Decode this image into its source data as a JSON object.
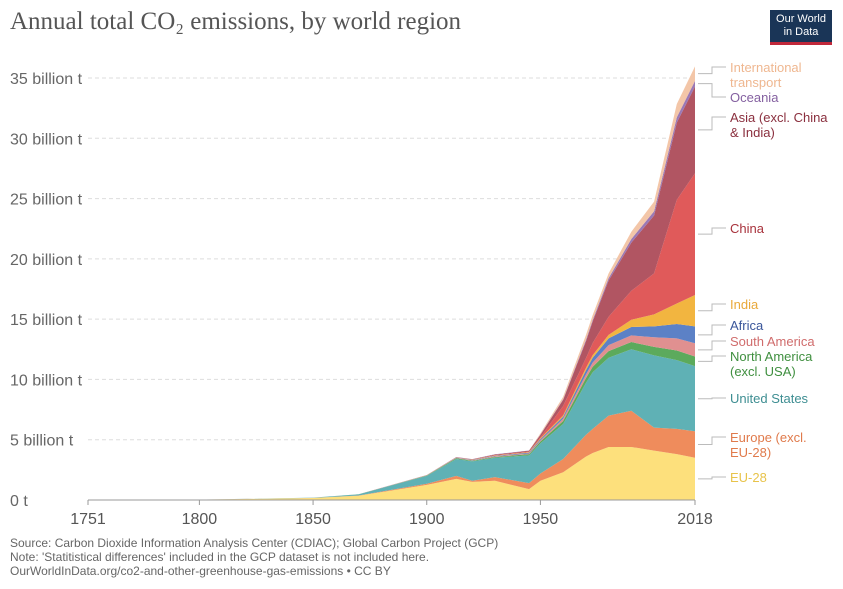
{
  "title": "Annual total CO₂ emissions, by world region",
  "logo": {
    "line1": "Our World",
    "line2": "in Data"
  },
  "footer": {
    "source": "Source: Carbon Dioxide Information Analysis Center (CDIAC); Global Carbon Project (GCP)",
    "note": "Note: 'Statitistical differences' included in the GCP dataset is not included here.",
    "url": "OurWorldInData.org/co2-and-other-greenhouse-gas-emissions • CC BY"
  },
  "chart_data": {
    "type": "area",
    "stacked": true,
    "title": "Annual total CO₂ emissions, by world region",
    "xlim": [
      1751,
      2018
    ],
    "ylim": [
      0,
      35
    ],
    "x_ticks": [
      "1751",
      "1800",
      "1850",
      "1900",
      "1950",
      "2018"
    ],
    "y_ticks": [
      0,
      5,
      10,
      15,
      20,
      25,
      30,
      35
    ],
    "y_tick_labels": [
      "0 t",
      "5 billion t",
      "10 billion t",
      "15 billion t",
      "20 billion t",
      "25 billion t",
      "30 billion t",
      "35 billion t"
    ],
    "grid": "horizontal dashed",
    "legend": "right, inline labels",
    "unit": "billion t",
    "x": [
      1751,
      1800,
      1850,
      1870,
      1900,
      1913,
      1920,
      1930,
      1945,
      1950,
      1960,
      1970,
      1973,
      1980,
      1990,
      2000,
      2010,
      2018
    ],
    "series": [
      {
        "name": "EU-28",
        "color": "#fde07c",
        "label_color": "#e8c34a",
        "values": [
          0.009,
          0.027,
          0.17,
          0.35,
          1.25,
          1.75,
          1.5,
          1.6,
          0.9,
          1.6,
          2.3,
          3.6,
          3.9,
          4.4,
          4.4,
          4.1,
          3.8,
          3.5
        ]
      },
      {
        "name": "Europe (excl. EU-28)",
        "color": "#ef8c5c",
        "label_color": "#e07a4b",
        "values": [
          0,
          0,
          0.005,
          0.02,
          0.1,
          0.25,
          0.1,
          0.3,
          0.5,
          0.6,
          1.1,
          1.8,
          2.0,
          2.6,
          3.0,
          1.9,
          2.1,
          2.2
        ]
      },
      {
        "name": "United States",
        "color": "#5fb1b5",
        "label_color": "#3e8e92",
        "values": [
          0,
          0.001,
          0.02,
          0.1,
          0.65,
          1.4,
          1.6,
          1.6,
          2.3,
          2.5,
          2.9,
          4.3,
          4.7,
          4.8,
          5.1,
          6.0,
          5.7,
          5.4
        ]
      },
      {
        "name": "North America (excl. USA)",
        "color": "#5caa5c",
        "label_color": "#3f8f3f",
        "values": [
          0,
          0,
          0,
          0.005,
          0.03,
          0.07,
          0.06,
          0.07,
          0.1,
          0.15,
          0.25,
          0.4,
          0.45,
          0.55,
          0.6,
          0.7,
          0.8,
          0.8
        ]
      },
      {
        "name": "South America",
        "color": "#e09090",
        "label_color": "#d06c6c",
        "values": [
          0,
          0,
          0,
          0,
          0.01,
          0.02,
          0.03,
          0.05,
          0.06,
          0.1,
          0.2,
          0.3,
          0.35,
          0.5,
          0.55,
          0.8,
          1.0,
          1.1
        ]
      },
      {
        "name": "Africa",
        "color": "#5c81c6",
        "label_color": "#3a569a",
        "values": [
          0,
          0,
          0,
          0,
          0.005,
          0.02,
          0.03,
          0.04,
          0.07,
          0.1,
          0.15,
          0.35,
          0.4,
          0.55,
          0.7,
          0.9,
          1.2,
          1.4
        ]
      },
      {
        "name": "India",
        "color": "#f2b540",
        "label_color": "#e9a93a",
        "values": [
          0,
          0,
          0,
          0,
          0.01,
          0.02,
          0.02,
          0.03,
          0.04,
          0.07,
          0.12,
          0.2,
          0.22,
          0.3,
          0.6,
          1.0,
          1.7,
          2.6
        ]
      },
      {
        "name": "China",
        "color": "#e05a5a",
        "label_color": "#a8323c",
        "values": [
          0,
          0,
          0,
          0,
          0.001,
          0.01,
          0.01,
          0.03,
          0.04,
          0.08,
          0.78,
          0.8,
          1.0,
          1.5,
          2.4,
          3.4,
          8.6,
          10.1
        ]
      },
      {
        "name": "Asia (excl. China & India)",
        "color": "#b15562",
        "label_color": "#8a2f3e",
        "values": [
          0,
          0,
          0,
          0,
          0.01,
          0.02,
          0.03,
          0.05,
          0.08,
          0.2,
          0.5,
          1.4,
          1.8,
          3.0,
          4.0,
          4.8,
          6.4,
          7.2
        ]
      },
      {
        "name": "Oceania",
        "color": "#9b79b5",
        "label_color": "#8460a0",
        "values": [
          0,
          0,
          0,
          0,
          0.01,
          0.01,
          0.01,
          0.02,
          0.02,
          0.03,
          0.06,
          0.11,
          0.12,
          0.2,
          0.3,
          0.35,
          0.44,
          0.46
        ]
      },
      {
        "name": "International transport",
        "color": "#f3c6a8",
        "label_color": "#efb790",
        "values": [
          0,
          0,
          0,
          0,
          0,
          0,
          0,
          0,
          0,
          0.1,
          0.2,
          0.4,
          0.4,
          0.4,
          0.6,
          0.8,
          1.1,
          1.2
        ]
      }
    ]
  }
}
